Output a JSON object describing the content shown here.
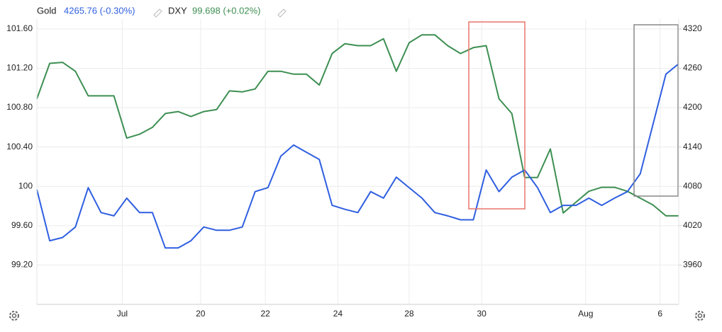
{
  "chart_data": {
    "type": "line",
    "legend": [
      {
        "name": "Gold",
        "quote": "4265.76 (-0.30%)"
      },
      {
        "name": "DXY",
        "quote": "99.698 (+0.02%)"
      }
    ],
    "x": [
      0,
      2,
      4,
      6,
      8,
      10,
      12,
      14,
      16,
      18,
      20,
      22,
      24,
      26,
      28,
      30,
      32,
      34,
      36,
      38,
      40,
      42,
      44,
      46,
      48,
      50,
      52,
      54,
      56,
      58,
      60,
      62,
      64,
      66,
      68,
      70,
      72,
      74,
      76,
      78,
      80,
      82,
      84,
      86,
      88,
      90,
      92,
      94,
      96,
      98,
      100
    ],
    "xlim": [
      0,
      100
    ],
    "xticks": [
      {
        "value": 13.3,
        "label": "Jul"
      },
      {
        "value": 25.5,
        "label": "20"
      },
      {
        "value": 35.6,
        "label": "22"
      },
      {
        "value": 46.9,
        "label": "24"
      },
      {
        "value": 58,
        "label": "28"
      },
      {
        "value": 69.3,
        "label": "30"
      },
      {
        "value": 85.5,
        "label": "Aug"
      },
      {
        "value": 97.1,
        "label": "6"
      }
    ],
    "series": [
      {
        "name": "DXY",
        "color": "#3d8f52",
        "axis": "y",
        "values": [
          100.89,
          101.25,
          101.26,
          101.17,
          100.92,
          100.92,
          100.92,
          100.49,
          100.53,
          100.6,
          100.74,
          100.76,
          100.71,
          100.76,
          100.78,
          100.97,
          100.96,
          100.99,
          101.17,
          101.17,
          101.14,
          101.14,
          101.03,
          101.35,
          101.45,
          101.43,
          101.43,
          101.5,
          101.17,
          101.46,
          101.54,
          101.54,
          101.43,
          101.35,
          101.41,
          101.43,
          100.89,
          100.74,
          100.09,
          100.09,
          100.38,
          99.73,
          99.84,
          99.95,
          99.99,
          99.99,
          99.95,
          99.88,
          99.81,
          99.7,
          99.7
        ]
      },
      {
        "name": "Gold",
        "color": "#2f5fe0",
        "axis": "y2",
        "values": [
          4075,
          3997,
          4002,
          4018,
          4078,
          4040,
          4035,
          4062,
          4040,
          4040,
          3986,
          3986,
          3997,
          4018,
          4013,
          4013,
          4018,
          4072,
          4078,
          4126,
          4143,
          4132,
          4121,
          4051,
          4045,
          4040,
          4072,
          4062,
          4094,
          4078,
          4062,
          4040,
          4035,
          4029,
          4029,
          4105,
          4072,
          4094,
          4105,
          4078,
          4040,
          4051,
          4051,
          4062,
          4051,
          4062,
          4072,
          4099,
          4175,
          4251,
          4267
        ]
      }
    ],
    "ylim": [
      98.8,
      101.7
    ],
    "yticks": [
      {
        "value": 101.6,
        "label": "101.60"
      },
      {
        "value": 101.2,
        "label": "101.20"
      },
      {
        "value": 100.8,
        "label": "100.80"
      },
      {
        "value": 100.4,
        "label": "100.40"
      },
      100,
      {
        "value": 99.6,
        "label": "99.60"
      },
      {
        "value": 99.2,
        "label": "99.20"
      }
    ],
    "y2lim": [
      3900,
      4335
    ],
    "y2ticks": [
      4320,
      4260,
      4200,
      4140,
      4080,
      4020,
      3960
    ],
    "grid": true
  }
}
